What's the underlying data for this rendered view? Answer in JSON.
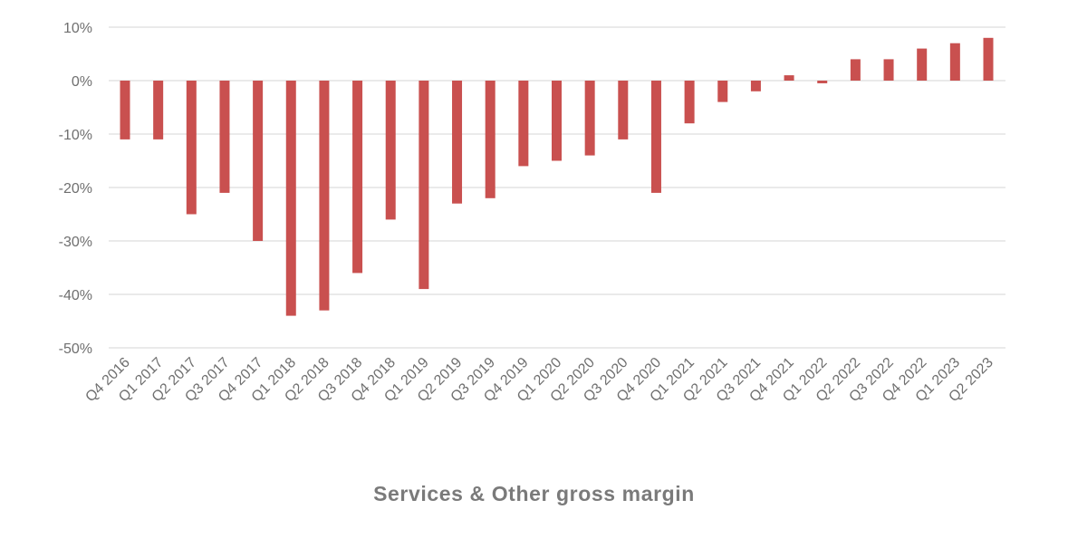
{
  "chart_data": {
    "type": "bar",
    "title": "Services & Other gross margin",
    "xlabel": "",
    "ylabel": "",
    "ylim": [
      -50,
      10
    ],
    "yticks": [
      10,
      0,
      -10,
      -20,
      -30,
      -40,
      -50
    ],
    "ytick_labels": [
      "10%",
      "0%",
      "-10%",
      "-20%",
      "-30%",
      "-40%",
      "-50%"
    ],
    "grid": true,
    "legend": "none",
    "categories": [
      "Q4 2016",
      "Q1 2017",
      "Q2 2017",
      "Q3 2017",
      "Q4 2017",
      "Q1 2018",
      "Q2 2018",
      "Q3 2018",
      "Q4 2018",
      "Q1 2019",
      "Q2 2019",
      "Q3 2019",
      "Q4 2019",
      "Q1 2020",
      "Q2 2020",
      "Q3 2020",
      "Q4 2020",
      "Q1 2021",
      "Q2 2021",
      "Q3 2021",
      "Q4 2021",
      "Q1 2022",
      "Q2 2022",
      "Q3 2022",
      "Q4 2022",
      "Q1 2023",
      "Q2 2023"
    ],
    "values": [
      -11,
      -11,
      -25,
      -21,
      -30,
      -44,
      -43,
      -36,
      -26,
      -39,
      -23,
      -22,
      -16,
      -15,
      -14,
      -11,
      -21,
      -8,
      -4,
      -2,
      1,
      -0.5,
      4,
      4,
      6,
      7,
      8
    ],
    "colors": {
      "bar": "#c9504f",
      "grid": "#e4e4e4",
      "text": "#6f6f6f"
    }
  }
}
